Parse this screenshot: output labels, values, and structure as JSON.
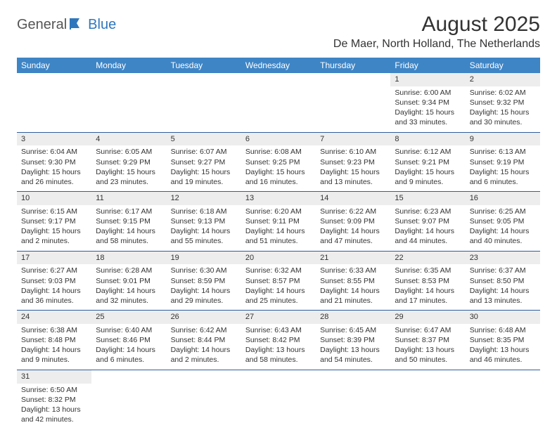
{
  "logo": {
    "word1": "General",
    "word2": "Blue"
  },
  "title": "August 2025",
  "location": "De Maer, North Holland, The Netherlands",
  "colors": {
    "header_bg": "#3e85c6",
    "header_text": "#ffffff",
    "daynum_bg": "#ededed",
    "row_border": "#2f5ea0",
    "logo_accent": "#2f77bd"
  },
  "weekdays": [
    "Sunday",
    "Monday",
    "Tuesday",
    "Wednesday",
    "Thursday",
    "Friday",
    "Saturday"
  ],
  "weeks": [
    [
      {
        "n": "",
        "sr": "",
        "ss": "",
        "dl": ""
      },
      {
        "n": "",
        "sr": "",
        "ss": "",
        "dl": ""
      },
      {
        "n": "",
        "sr": "",
        "ss": "",
        "dl": ""
      },
      {
        "n": "",
        "sr": "",
        "ss": "",
        "dl": ""
      },
      {
        "n": "",
        "sr": "",
        "ss": "",
        "dl": ""
      },
      {
        "n": "1",
        "sr": "Sunrise: 6:00 AM",
        "ss": "Sunset: 9:34 PM",
        "dl": "Daylight: 15 hours and 33 minutes."
      },
      {
        "n": "2",
        "sr": "Sunrise: 6:02 AM",
        "ss": "Sunset: 9:32 PM",
        "dl": "Daylight: 15 hours and 30 minutes."
      }
    ],
    [
      {
        "n": "3",
        "sr": "Sunrise: 6:04 AM",
        "ss": "Sunset: 9:30 PM",
        "dl": "Daylight: 15 hours and 26 minutes."
      },
      {
        "n": "4",
        "sr": "Sunrise: 6:05 AM",
        "ss": "Sunset: 9:29 PM",
        "dl": "Daylight: 15 hours and 23 minutes."
      },
      {
        "n": "5",
        "sr": "Sunrise: 6:07 AM",
        "ss": "Sunset: 9:27 PM",
        "dl": "Daylight: 15 hours and 19 minutes."
      },
      {
        "n": "6",
        "sr": "Sunrise: 6:08 AM",
        "ss": "Sunset: 9:25 PM",
        "dl": "Daylight: 15 hours and 16 minutes."
      },
      {
        "n": "7",
        "sr": "Sunrise: 6:10 AM",
        "ss": "Sunset: 9:23 PM",
        "dl": "Daylight: 15 hours and 13 minutes."
      },
      {
        "n": "8",
        "sr": "Sunrise: 6:12 AM",
        "ss": "Sunset: 9:21 PM",
        "dl": "Daylight: 15 hours and 9 minutes."
      },
      {
        "n": "9",
        "sr": "Sunrise: 6:13 AM",
        "ss": "Sunset: 9:19 PM",
        "dl": "Daylight: 15 hours and 6 minutes."
      }
    ],
    [
      {
        "n": "10",
        "sr": "Sunrise: 6:15 AM",
        "ss": "Sunset: 9:17 PM",
        "dl": "Daylight: 15 hours and 2 minutes."
      },
      {
        "n": "11",
        "sr": "Sunrise: 6:17 AM",
        "ss": "Sunset: 9:15 PM",
        "dl": "Daylight: 14 hours and 58 minutes."
      },
      {
        "n": "12",
        "sr": "Sunrise: 6:18 AM",
        "ss": "Sunset: 9:13 PM",
        "dl": "Daylight: 14 hours and 55 minutes."
      },
      {
        "n": "13",
        "sr": "Sunrise: 6:20 AM",
        "ss": "Sunset: 9:11 PM",
        "dl": "Daylight: 14 hours and 51 minutes."
      },
      {
        "n": "14",
        "sr": "Sunrise: 6:22 AM",
        "ss": "Sunset: 9:09 PM",
        "dl": "Daylight: 14 hours and 47 minutes."
      },
      {
        "n": "15",
        "sr": "Sunrise: 6:23 AM",
        "ss": "Sunset: 9:07 PM",
        "dl": "Daylight: 14 hours and 44 minutes."
      },
      {
        "n": "16",
        "sr": "Sunrise: 6:25 AM",
        "ss": "Sunset: 9:05 PM",
        "dl": "Daylight: 14 hours and 40 minutes."
      }
    ],
    [
      {
        "n": "17",
        "sr": "Sunrise: 6:27 AM",
        "ss": "Sunset: 9:03 PM",
        "dl": "Daylight: 14 hours and 36 minutes."
      },
      {
        "n": "18",
        "sr": "Sunrise: 6:28 AM",
        "ss": "Sunset: 9:01 PM",
        "dl": "Daylight: 14 hours and 32 minutes."
      },
      {
        "n": "19",
        "sr": "Sunrise: 6:30 AM",
        "ss": "Sunset: 8:59 PM",
        "dl": "Daylight: 14 hours and 29 minutes."
      },
      {
        "n": "20",
        "sr": "Sunrise: 6:32 AM",
        "ss": "Sunset: 8:57 PM",
        "dl": "Daylight: 14 hours and 25 minutes."
      },
      {
        "n": "21",
        "sr": "Sunrise: 6:33 AM",
        "ss": "Sunset: 8:55 PM",
        "dl": "Daylight: 14 hours and 21 minutes."
      },
      {
        "n": "22",
        "sr": "Sunrise: 6:35 AM",
        "ss": "Sunset: 8:53 PM",
        "dl": "Daylight: 14 hours and 17 minutes."
      },
      {
        "n": "23",
        "sr": "Sunrise: 6:37 AM",
        "ss": "Sunset: 8:50 PM",
        "dl": "Daylight: 14 hours and 13 minutes."
      }
    ],
    [
      {
        "n": "24",
        "sr": "Sunrise: 6:38 AM",
        "ss": "Sunset: 8:48 PM",
        "dl": "Daylight: 14 hours and 9 minutes."
      },
      {
        "n": "25",
        "sr": "Sunrise: 6:40 AM",
        "ss": "Sunset: 8:46 PM",
        "dl": "Daylight: 14 hours and 6 minutes."
      },
      {
        "n": "26",
        "sr": "Sunrise: 6:42 AM",
        "ss": "Sunset: 8:44 PM",
        "dl": "Daylight: 14 hours and 2 minutes."
      },
      {
        "n": "27",
        "sr": "Sunrise: 6:43 AM",
        "ss": "Sunset: 8:42 PM",
        "dl": "Daylight: 13 hours and 58 minutes."
      },
      {
        "n": "28",
        "sr": "Sunrise: 6:45 AM",
        "ss": "Sunset: 8:39 PM",
        "dl": "Daylight: 13 hours and 54 minutes."
      },
      {
        "n": "29",
        "sr": "Sunrise: 6:47 AM",
        "ss": "Sunset: 8:37 PM",
        "dl": "Daylight: 13 hours and 50 minutes."
      },
      {
        "n": "30",
        "sr": "Sunrise: 6:48 AM",
        "ss": "Sunset: 8:35 PM",
        "dl": "Daylight: 13 hours and 46 minutes."
      }
    ],
    [
      {
        "n": "31",
        "sr": "Sunrise: 6:50 AM",
        "ss": "Sunset: 8:32 PM",
        "dl": "Daylight: 13 hours and 42 minutes."
      },
      {
        "n": "",
        "sr": "",
        "ss": "",
        "dl": ""
      },
      {
        "n": "",
        "sr": "",
        "ss": "",
        "dl": ""
      },
      {
        "n": "",
        "sr": "",
        "ss": "",
        "dl": ""
      },
      {
        "n": "",
        "sr": "",
        "ss": "",
        "dl": ""
      },
      {
        "n": "",
        "sr": "",
        "ss": "",
        "dl": ""
      },
      {
        "n": "",
        "sr": "",
        "ss": "",
        "dl": ""
      }
    ]
  ]
}
